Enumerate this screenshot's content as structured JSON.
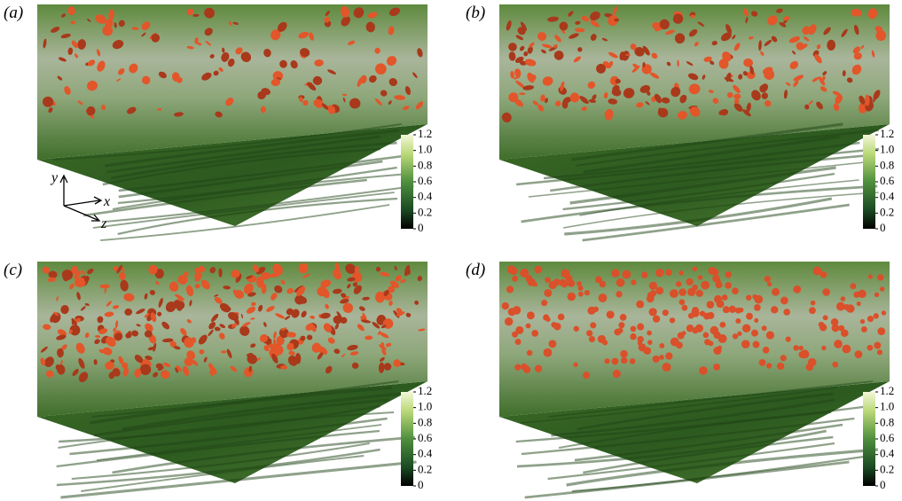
{
  "panels": [
    {
      "label": "(a)",
      "colorbar_ticks": [
        0,
        0.2,
        0.4,
        0.6,
        0.8,
        {
          "value": 1,
          "label": "1.0"
        },
        1.2
      ]
    },
    {
      "label": "(b)",
      "colorbar_ticks": [
        0,
        0.2,
        0.4,
        0.6,
        0.8,
        {
          "value": 1,
          "label": "1.0"
        },
        1.2
      ]
    },
    {
      "label": "(c)",
      "colorbar_ticks": [
        0,
        0.2,
        0.4,
        0.6,
        0.8,
        {
          "value": 1,
          "label": "1.0"
        },
        1.2
      ]
    },
    {
      "label": "(d)",
      "colorbar_ticks": [
        0,
        0.2,
        0.4,
        0.6,
        0.8,
        {
          "value": 1,
          "label": "1.0"
        },
        1.2
      ]
    }
  ],
  "axes_triad": {
    "y": "y",
    "x": "x",
    "z": "z"
  }
}
